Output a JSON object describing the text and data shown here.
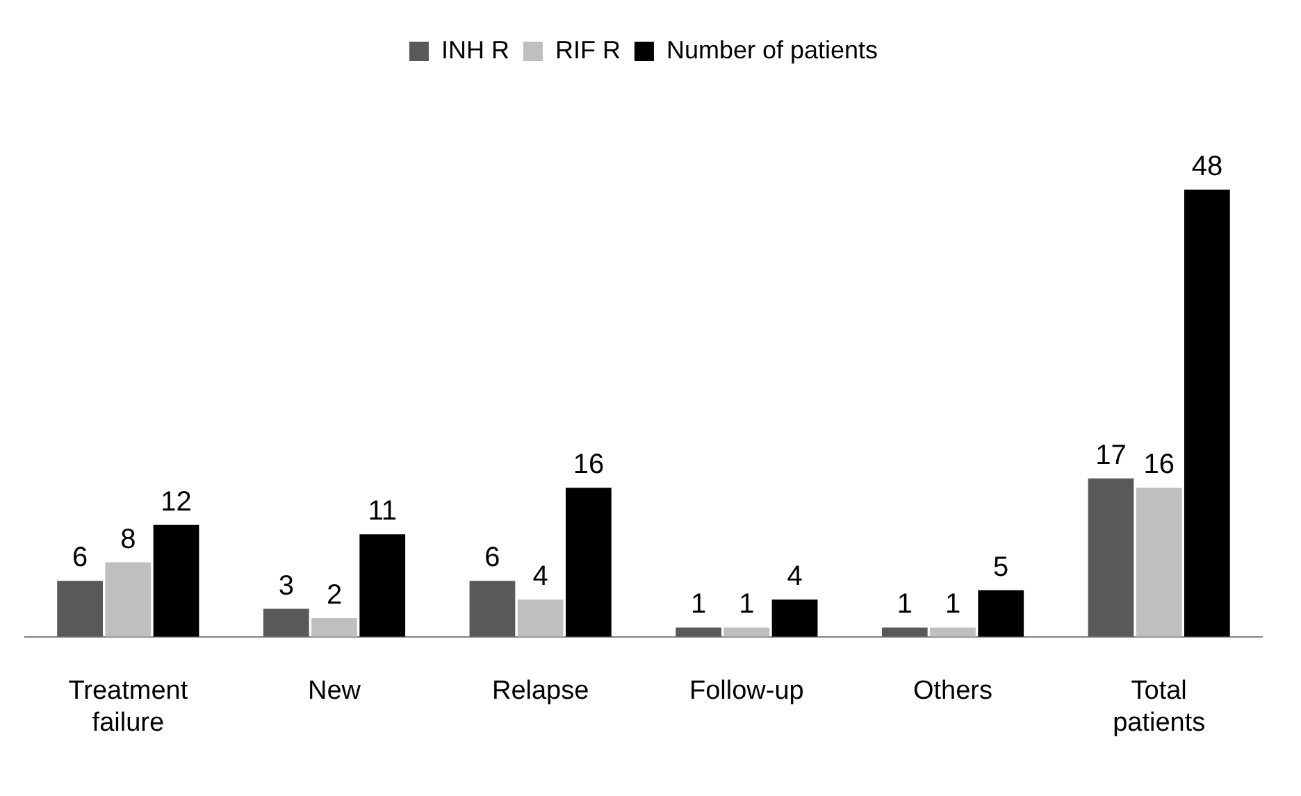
{
  "chart_data": {
    "type": "bar",
    "categories": [
      "Treatment failure",
      "New",
      "Relapse",
      "Follow-up",
      "Others",
      "Total patients"
    ],
    "series": [
      {
        "name": "INH R",
        "color": "#595959",
        "values": [
          6,
          3,
          6,
          1,
          1,
          17
        ]
      },
      {
        "name": "RIF R",
        "color": "#bfbfbf",
        "values": [
          8,
          2,
          4,
          1,
          1,
          16
        ]
      },
      {
        "name": "Number of patients",
        "color": "#000000",
        "values": [
          12,
          11,
          16,
          4,
          5,
          48
        ]
      }
    ],
    "data_labels": true,
    "legend": "top",
    "grid": false
  }
}
